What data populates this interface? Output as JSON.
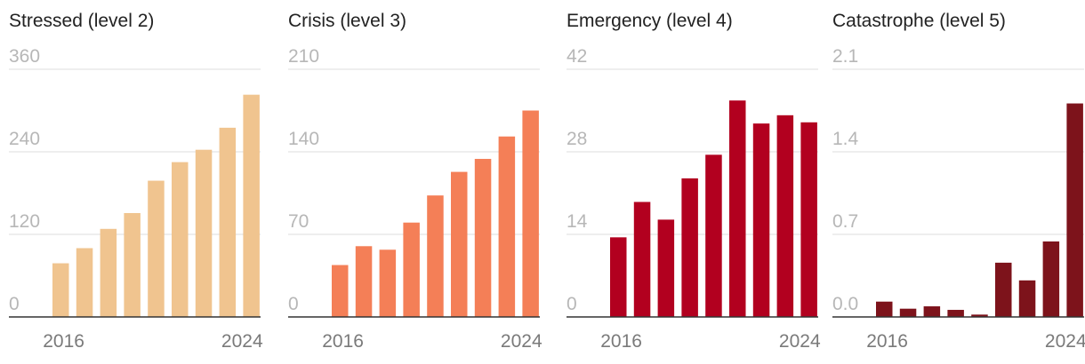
{
  "chart_data": [
    {
      "type": "bar",
      "title": "Stressed (level 2)",
      "color": "#f0c48f",
      "categories": [
        "2016",
        "2017",
        "2018",
        "2019",
        "2020",
        "2021",
        "2022",
        "2023",
        "2024"
      ],
      "values": [
        78,
        100,
        128,
        151,
        198,
        225,
        243,
        275,
        323
      ],
      "ylim": [
        0,
        360
      ],
      "yticks": [
        "0",
        "120",
        "240",
        "360"
      ],
      "xtick_labels": [
        "2016",
        "2024"
      ],
      "grid": true
    },
    {
      "type": "bar",
      "title": "Crisis (level 3)",
      "color": "#f47f57",
      "categories": [
        "2016",
        "2017",
        "2018",
        "2019",
        "2020",
        "2021",
        "2022",
        "2023",
        "2024"
      ],
      "values": [
        44,
        60,
        57,
        80,
        103,
        123,
        134,
        153,
        175
      ],
      "ylim": [
        0,
        210
      ],
      "yticks": [
        "0",
        "70",
        "140",
        "210"
      ],
      "xtick_labels": [
        "2016",
        "2024"
      ],
      "grid": true
    },
    {
      "type": "bar",
      "title": "Emergency (level 4)",
      "color": "#b2001f",
      "categories": [
        "2016",
        "2017",
        "2018",
        "2019",
        "2020",
        "2021",
        "2022",
        "2023",
        "2024"
      ],
      "values": [
        13.5,
        19.5,
        16.5,
        23.5,
        27.5,
        36.7,
        32.8,
        34.2,
        33.0
      ],
      "ylim": [
        0,
        42
      ],
      "yticks": [
        "0",
        "14",
        "28",
        "42"
      ],
      "xtick_labels": [
        "2016",
        "2024"
      ],
      "grid": true
    },
    {
      "type": "bar",
      "title": "Catastrophe (level 5)",
      "color": "#7d131b",
      "categories": [
        "2016",
        "2017",
        "2018",
        "2019",
        "2020",
        "2021",
        "2022",
        "2023",
        "2024"
      ],
      "values": [
        0.13,
        0.07,
        0.09,
        0.06,
        0.02,
        0.46,
        0.31,
        0.64,
        1.81
      ],
      "ylim": [
        0,
        2.1
      ],
      "yticks": [
        "0.0",
        "0.7",
        "1.4",
        "2.1"
      ],
      "xtick_labels": [
        "2016",
        "2024"
      ],
      "grid": true
    }
  ]
}
